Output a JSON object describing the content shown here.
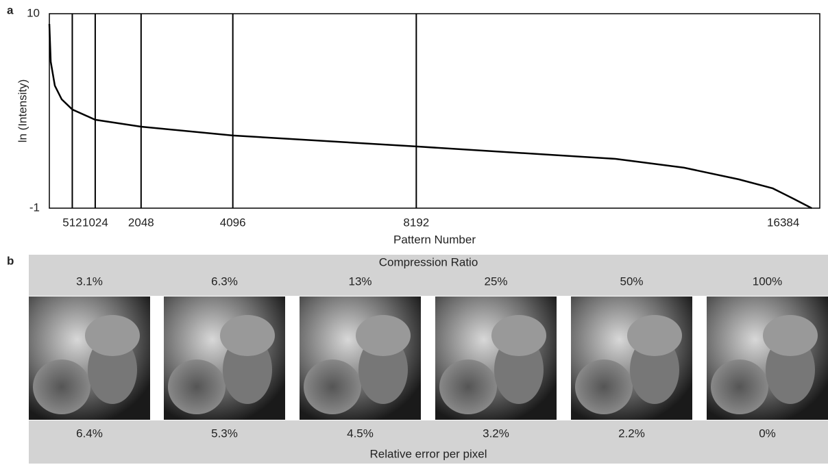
{
  "panels": [
    "a",
    "b"
  ],
  "chart_data": {
    "type": "line",
    "xlabel": "Pattern Number",
    "ylabel": "ln (Intensity)",
    "xlim": [
      0,
      17200
    ],
    "ylim": [
      -1,
      10
    ],
    "xticks": [
      512,
      1024,
      2048,
      4096,
      8192,
      16384
    ],
    "yticks": [
      -1,
      10
    ],
    "vlines": [
      512,
      1024,
      2048,
      4096,
      8192
    ],
    "color": "#000000",
    "x": [
      0,
      31,
      122,
      275,
      512,
      1024,
      2048,
      4096,
      8192,
      12640,
      14170,
      15390,
      16150,
      16610,
      17020
    ],
    "values": [
      9.42,
      7.29,
      5.93,
      5.16,
      4.58,
      4.0,
      3.61,
      3.11,
      2.49,
      1.79,
      1.29,
      0.63,
      0.12,
      -0.46,
      -1.0
    ]
  },
  "table": {
    "title": "Compression Ratio",
    "columns": [
      "3.1%",
      "6.3%",
      "13%",
      "25%",
      "50%",
      "100%"
    ],
    "errors": [
      "6.4%",
      "5.3%",
      "4.5%",
      "3.2%",
      "2.2%",
      "0%"
    ],
    "footer": "Relative error per pixel"
  }
}
